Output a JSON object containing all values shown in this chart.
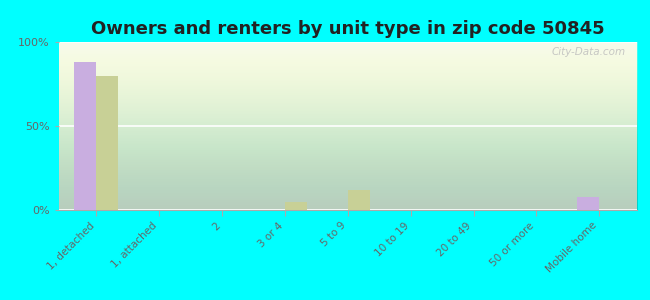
{
  "title": "Owners and renters by unit type in zip code 50845",
  "categories": [
    "1, detached",
    "1, attached",
    "2",
    "3 or 4",
    "5 to 9",
    "10 to 19",
    "20 to 49",
    "50 or more",
    "Mobile home"
  ],
  "owner_values": [
    88,
    0,
    0,
    0,
    0,
    0,
    0,
    0,
    8
  ],
  "renter_values": [
    80,
    0,
    0,
    5,
    12,
    0,
    0,
    0,
    0
  ],
  "owner_color": "#c9aee0",
  "renter_color": "#c8d096",
  "background_color": "#00ffff",
  "ylim": [
    0,
    100
  ],
  "yticks": [
    0,
    50,
    100
  ],
  "ytick_labels": [
    "0%",
    "50%",
    "100%"
  ],
  "bar_width": 0.35,
  "title_fontsize": 13,
  "watermark": "City-Data.com"
}
